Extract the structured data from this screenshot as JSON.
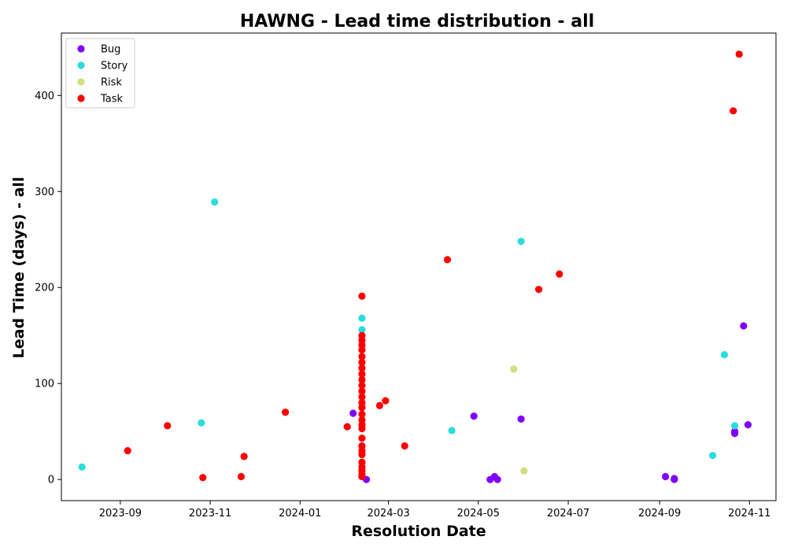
{
  "chart_data": {
    "type": "scatter",
    "title": "HAWNG - Lead time distribution - all",
    "xlabel": "Resolution Date",
    "ylabel": "Lead Time (days) - all",
    "x_axis_type": "date",
    "xlim": [
      "2023-07-23",
      "2024-11-19"
    ],
    "ylim": [
      -22,
      465
    ],
    "xticks": [
      "2023-09-01",
      "2023-11-01",
      "2024-01-01",
      "2024-03-01",
      "2024-05-01",
      "2024-07-01",
      "2024-09-01",
      "2024-11-01"
    ],
    "xtick_labels": [
      "2023-09",
      "2023-11",
      "2024-01",
      "2024-03",
      "2024-05",
      "2024-07",
      "2024-09",
      "2024-11"
    ],
    "yticks": [
      0,
      100,
      200,
      300,
      400
    ],
    "grid": false,
    "legend_position": "top-left",
    "series": [
      {
        "name": "Bug",
        "color": "#8000ff",
        "points": [
          [
            "2024-02-06",
            69
          ],
          [
            "2024-02-15",
            0
          ],
          [
            "2024-04-28",
            66
          ],
          [
            "2024-05-09",
            0
          ],
          [
            "2024-05-12",
            3
          ],
          [
            "2024-05-14",
            0
          ],
          [
            "2024-05-30",
            63
          ],
          [
            "2024-09-05",
            3
          ],
          [
            "2024-09-11",
            0
          ],
          [
            "2024-09-11",
            1
          ],
          [
            "2024-10-22",
            48
          ],
          [
            "2024-10-22",
            50
          ],
          [
            "2024-10-28",
            160
          ],
          [
            "2024-10-31",
            57
          ]
        ]
      },
      {
        "name": "Story",
        "color": "#2adddd",
        "points": [
          [
            "2023-08-06",
            13
          ],
          [
            "2023-10-26",
            59
          ],
          [
            "2023-11-04",
            289
          ],
          [
            "2024-02-12",
            168
          ],
          [
            "2024-02-12",
            156
          ],
          [
            "2024-04-13",
            51
          ],
          [
            "2024-05-30",
            248
          ],
          [
            "2024-10-07",
            25
          ],
          [
            "2024-10-15",
            130
          ],
          [
            "2024-10-22",
            56
          ]
        ]
      },
      {
        "name": "Risk",
        "color": "#d4dd80",
        "points": [
          [
            "2024-05-25",
            115
          ],
          [
            "2024-06-01",
            9
          ]
        ]
      },
      {
        "name": "Task",
        "color": "#ff0000",
        "points": [
          [
            "2023-09-06",
            30
          ],
          [
            "2023-10-03",
            56
          ],
          [
            "2023-10-27",
            2
          ],
          [
            "2023-11-22",
            3
          ],
          [
            "2023-11-24",
            24
          ],
          [
            "2023-12-22",
            70
          ],
          [
            "2024-02-02",
            55
          ],
          [
            "2024-02-12",
            191
          ],
          [
            "2024-02-12",
            150
          ],
          [
            "2024-02-12",
            145
          ],
          [
            "2024-02-12",
            140
          ],
          [
            "2024-02-12",
            135
          ],
          [
            "2024-02-12",
            128
          ],
          [
            "2024-02-12",
            122
          ],
          [
            "2024-02-12",
            116
          ],
          [
            "2024-02-12",
            110
          ],
          [
            "2024-02-12",
            104
          ],
          [
            "2024-02-12",
            98
          ],
          [
            "2024-02-12",
            92
          ],
          [
            "2024-02-12",
            86
          ],
          [
            "2024-02-12",
            80
          ],
          [
            "2024-02-12",
            75
          ],
          [
            "2024-02-12",
            68
          ],
          [
            "2024-02-12",
            62
          ],
          [
            "2024-02-12",
            57
          ],
          [
            "2024-02-12",
            53
          ],
          [
            "2024-02-12",
            43
          ],
          [
            "2024-02-12",
            35
          ],
          [
            "2024-02-12",
            30
          ],
          [
            "2024-02-12",
            26
          ],
          [
            "2024-02-12",
            18
          ],
          [
            "2024-02-12",
            13
          ],
          [
            "2024-02-12",
            9
          ],
          [
            "2024-02-12",
            5
          ],
          [
            "2024-02-12",
            3
          ],
          [
            "2024-02-24",
            77
          ],
          [
            "2024-02-28",
            82
          ],
          [
            "2024-03-12",
            35
          ],
          [
            "2024-04-10",
            229
          ],
          [
            "2024-06-11",
            198
          ],
          [
            "2024-06-25",
            214
          ],
          [
            "2024-10-21",
            384
          ],
          [
            "2024-10-25",
            443
          ]
        ]
      }
    ]
  }
}
